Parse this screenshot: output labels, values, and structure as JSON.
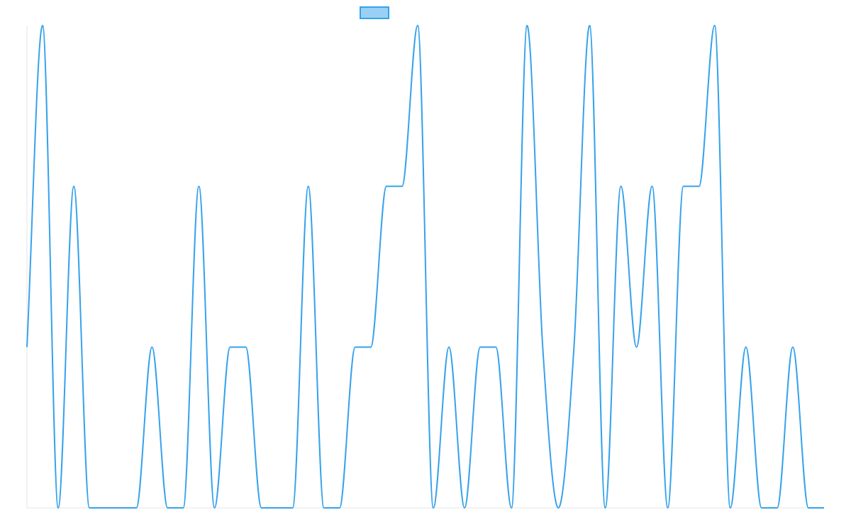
{
  "chart_data": {
    "type": "line",
    "title": "",
    "xlabel": "",
    "ylabel": "",
    "grid": false,
    "legend_position": "top-center",
    "x": [
      0,
      1,
      2,
      3,
      4,
      5,
      6,
      7,
      8,
      9,
      10,
      11,
      12,
      13,
      14,
      15,
      16,
      17,
      18,
      19,
      20,
      21,
      22,
      23,
      24,
      25,
      26,
      27,
      28,
      29,
      30,
      31,
      32,
      33,
      34,
      35,
      36,
      37,
      38,
      39,
      40,
      41,
      42,
      43,
      44,
      45,
      46,
      47,
      48,
      49,
      50,
      51
    ],
    "ylim": [
      0,
      3
    ],
    "series": [
      {
        "name": "",
        "color": "#36a2eb",
        "fill": "#9ad0f5",
        "values": [
          1,
          3,
          0,
          2,
          0,
          0,
          0,
          0,
          1,
          0,
          0,
          2,
          0,
          1,
          1,
          0,
          0,
          0,
          2,
          0,
          0,
          1,
          1,
          2,
          2,
          3,
          0,
          1,
          0,
          1,
          1,
          0,
          3,
          1,
          0,
          1,
          3,
          0,
          2,
          1,
          2,
          0,
          2,
          2,
          3,
          0,
          1,
          0,
          0,
          1,
          0,
          0
        ]
      }
    ]
  }
}
